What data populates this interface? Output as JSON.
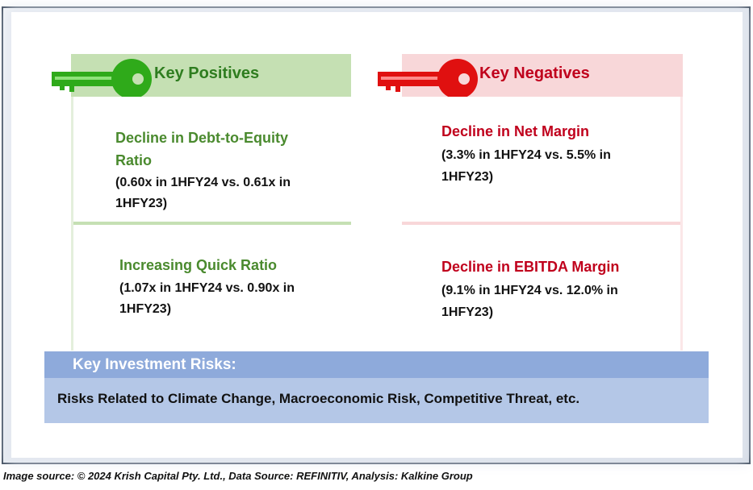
{
  "positives": {
    "title": "Key Positives",
    "icon": "key-icon",
    "color": "#2e7d1f",
    "items": [
      {
        "title_line1": "Decline in Debt-to-Equity",
        "title_line2": "Ratio",
        "detail_line1": "(0.60x in 1HFY24 vs. 0.61x in",
        "detail_line2": "1HFY23)"
      },
      {
        "title_line1": "Increasing Quick Ratio",
        "detail_line1": "(1.07x in 1HFY24 vs. 0.90x in",
        "detail_line2": "1HFY23)"
      }
    ]
  },
  "negatives": {
    "title": "Key Negatives",
    "icon": "key-icon",
    "color": "#c0001c",
    "items": [
      {
        "title_line1": "Decline in Net Margin",
        "detail_line1": "(3.3% in 1HFY24 vs. 5.5% in",
        "detail_line2": "1HFY23)"
      },
      {
        "title_line1": "Decline in EBITDA Margin",
        "detail_line1": "(9.1% in 1HFY24 vs. 12.0% in",
        "detail_line2": "1HFY23)"
      }
    ]
  },
  "risks": {
    "header": "Key Investment Risks:",
    "body": "Risks Related to Climate Change, Macroeconomic Risk, Competitive Threat, etc."
  },
  "caption": "Image source: © 2024 Krish Capital Pty. Ltd., Data Source: REFINITIV, Analysis: Kalkine Group"
}
